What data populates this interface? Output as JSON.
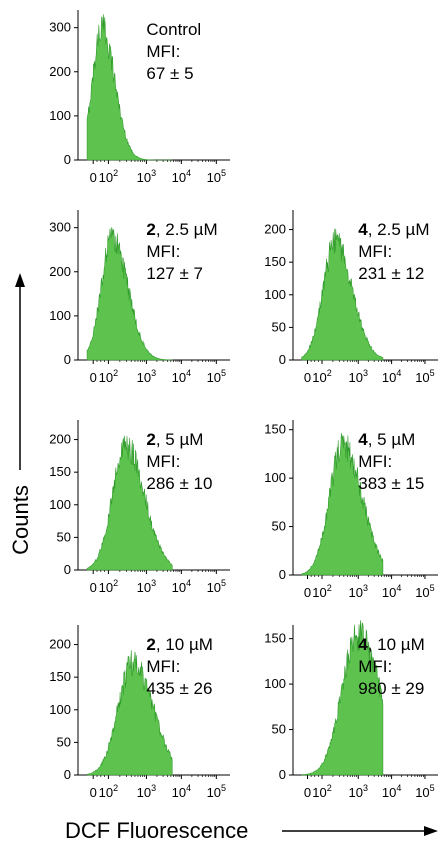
{
  "figure": {
    "ylabel": "Counts",
    "xlabel": "DCF Fluorescence",
    "fill_color": "#5ec24f",
    "stroke_color": "#2e9a2a"
  },
  "chart_data": [
    {
      "type": "area",
      "annotation": {
        "compound": "",
        "condition": "Control",
        "mfi_label": "MFI:",
        "mfi_value": "67 ± 5"
      },
      "ylim": [
        0,
        340
      ],
      "yticks": [
        0,
        100,
        200,
        300
      ],
      "xticks": [
        "0",
        "10^2",
        "10^3",
        "10^4",
        "10^5"
      ],
      "peak_count": 300,
      "mfi": 67
    },
    {
      "type": "area",
      "annotation": {
        "compound": "2",
        "condition": ", 2.5 µM",
        "mfi_label": "MFI:",
        "mfi_value": "127  ± 7"
      },
      "ylim": [
        0,
        340
      ],
      "yticks": [
        0,
        100,
        200,
        300
      ],
      "xticks": [
        "0",
        "10^2",
        "10^3",
        "10^4",
        "10^5"
      ],
      "peak_count": 275,
      "mfi": 127
    },
    {
      "type": "area",
      "annotation": {
        "compound": "4",
        "condition": ", 2.5 µM",
        "mfi_label": "MFI:",
        "mfi_value": "231 ± 12"
      },
      "ylim": [
        0,
        230
      ],
      "yticks": [
        0,
        50,
        100,
        150,
        200
      ],
      "xticks": [
        "0",
        "10^2",
        "10^3",
        "10^4",
        "10^5"
      ],
      "peak_count": 180,
      "mfi": 231
    },
    {
      "type": "area",
      "annotation": {
        "compound": "2",
        "condition": ", 5 µM",
        "mfi_label": "MFI:",
        "mfi_value": "286 ± 10"
      },
      "ylim": [
        0,
        230
      ],
      "yticks": [
        0,
        50,
        100,
        150,
        200
      ],
      "xticks": [
        "0",
        "10^2",
        "10^3",
        "10^4",
        "10^5"
      ],
      "peak_count": 190,
      "mfi": 286
    },
    {
      "type": "area",
      "annotation": {
        "compound": "4",
        "condition": ", 5 µM",
        "mfi_label": "MFI:",
        "mfi_value": "383 ± 15"
      },
      "ylim": [
        0,
        160
      ],
      "yticks": [
        0,
        50,
        100,
        150
      ],
      "xticks": [
        "0",
        "10^2",
        "10^3",
        "10^4",
        "10^5"
      ],
      "peak_count": 135,
      "mfi": 383
    },
    {
      "type": "area",
      "annotation": {
        "compound": "2",
        "condition": ", 10 µM",
        "mfi_label": "MFI:",
        "mfi_value": "435 ± 26"
      },
      "ylim": [
        0,
        230
      ],
      "yticks": [
        0,
        50,
        100,
        150,
        200
      ],
      "xticks": [
        "0",
        "10^2",
        "10^3",
        "10^4",
        "10^5"
      ],
      "peak_count": 172,
      "mfi": 435
    },
    {
      "type": "area",
      "annotation": {
        "compound": "4",
        "condition": ", 10 µM",
        "mfi_label": "MFI:",
        "mfi_value": "980 ± 29"
      },
      "ylim": [
        0,
        165
      ],
      "yticks": [
        0,
        50,
        100,
        150
      ],
      "xticks": [
        "0",
        "10^2",
        "10^3",
        "10^4",
        "10^5"
      ],
      "peak_count": 155,
      "mfi": 980
    }
  ]
}
